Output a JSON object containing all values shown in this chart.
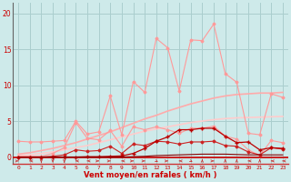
{
  "x": [
    0,
    1,
    2,
    3,
    4,
    5,
    6,
    7,
    8,
    9,
    10,
    11,
    12,
    13,
    14,
    15,
    16,
    17,
    18,
    19,
    20,
    21,
    22,
    23
  ],
  "bg_color": "#ceeaea",
  "grid_color": "#aacece",
  "xlabel": "Vent moyen/en rafales ( km/h )",
  "xlabel_color": "#cc0000",
  "tick_color": "#cc0000",
  "yticks": [
    0,
    5,
    10,
    15,
    20
  ],
  "ylim": [
    -1.0,
    21.5
  ],
  "xlim": [
    -0.5,
    23.5
  ],
  "line_rafales": {
    "y": [
      2.2,
      2.1,
      2.1,
      2.2,
      2.3,
      5.0,
      3.2,
      3.5,
      8.5,
      3.1,
      10.5,
      9.0,
      16.5,
      15.2,
      9.2,
      16.3,
      16.2,
      18.5,
      11.6,
      10.4,
      3.3,
      3.1,
      8.8,
      8.3
    ],
    "color": "#ff9999",
    "lw": 0.8,
    "marker": "D",
    "markersize": 1.5
  },
  "line_moyen": {
    "y": [
      0.1,
      0.1,
      0.1,
      0.5,
      1.3,
      4.8,
      2.6,
      2.4,
      3.7,
      1.5,
      4.2,
      3.8,
      4.2,
      3.8,
      3.3,
      4.0,
      4.0,
      4.3,
      2.9,
      2.5,
      1.0,
      0.2,
      2.3,
      2.0
    ],
    "color": "#ff9999",
    "lw": 0.8,
    "marker": "D",
    "markersize": 1.5
  },
  "line_smooth1": {
    "y": [
      0.4,
      0.6,
      0.9,
      1.2,
      1.6,
      2.0,
      2.5,
      3.0,
      3.5,
      4.1,
      4.7,
      5.3,
      5.8,
      6.4,
      6.9,
      7.4,
      7.8,
      8.2,
      8.5,
      8.7,
      8.8,
      8.9,
      8.9,
      9.0
    ],
    "color": "#ffaaaa",
    "lw": 1.2
  },
  "line_smooth2": {
    "y": [
      0.2,
      0.3,
      0.5,
      0.7,
      1.0,
      1.3,
      1.6,
      2.0,
      2.4,
      2.8,
      3.2,
      3.6,
      3.9,
      4.2,
      4.5,
      4.8,
      5.0,
      5.2,
      5.35,
      5.45,
      5.5,
      5.55,
      5.6,
      5.65
    ],
    "color": "#ffcccc",
    "lw": 1.2
  },
  "line_dark_wavy": {
    "y": [
      0.0,
      0.0,
      0.0,
      0.1,
      0.3,
      1.0,
      0.8,
      0.9,
      1.5,
      0.5,
      1.8,
      1.6,
      2.2,
      2.1,
      1.8,
      2.1,
      2.1,
      2.2,
      1.6,
      1.5,
      0.7,
      0.3,
      1.3,
      1.1
    ],
    "color": "#cc2222",
    "lw": 0.8,
    "marker": "D",
    "markersize": 1.5
  },
  "line_dark_peak": {
    "y": [
      0.0,
      0.0,
      0.0,
      0.0,
      0.0,
      0.0,
      0.05,
      0.05,
      0.1,
      0.15,
      0.5,
      1.2,
      2.2,
      2.8,
      3.8,
      3.8,
      4.0,
      4.0,
      2.9,
      2.0,
      2.1,
      1.0,
      1.3,
      1.2
    ],
    "color": "#bb0000",
    "lw": 0.9,
    "marker": "+",
    "markersize": 2.5
  },
  "line_dark_flat": {
    "y": [
      0.0,
      0.0,
      0.0,
      0.0,
      0.0,
      0.0,
      0.0,
      0.0,
      0.0,
      0.0,
      0.05,
      0.1,
      0.2,
      0.25,
      0.3,
      0.35,
      0.4,
      0.4,
      0.4,
      0.35,
      0.3,
      0.3,
      0.3,
      0.3
    ],
    "color": "#880000",
    "lw": 0.8
  },
  "line_zero": {
    "color": "#cc0000",
    "lw": 1.2
  },
  "arrow_color": "#cc3333",
  "arrow_dirs": [
    90,
    270,
    180,
    180,
    180,
    270,
    270,
    90,
    90,
    270,
    90,
    90,
    135,
    90,
    270,
    135,
    0,
    90,
    0,
    0,
    270,
    0,
    270,
    270
  ]
}
